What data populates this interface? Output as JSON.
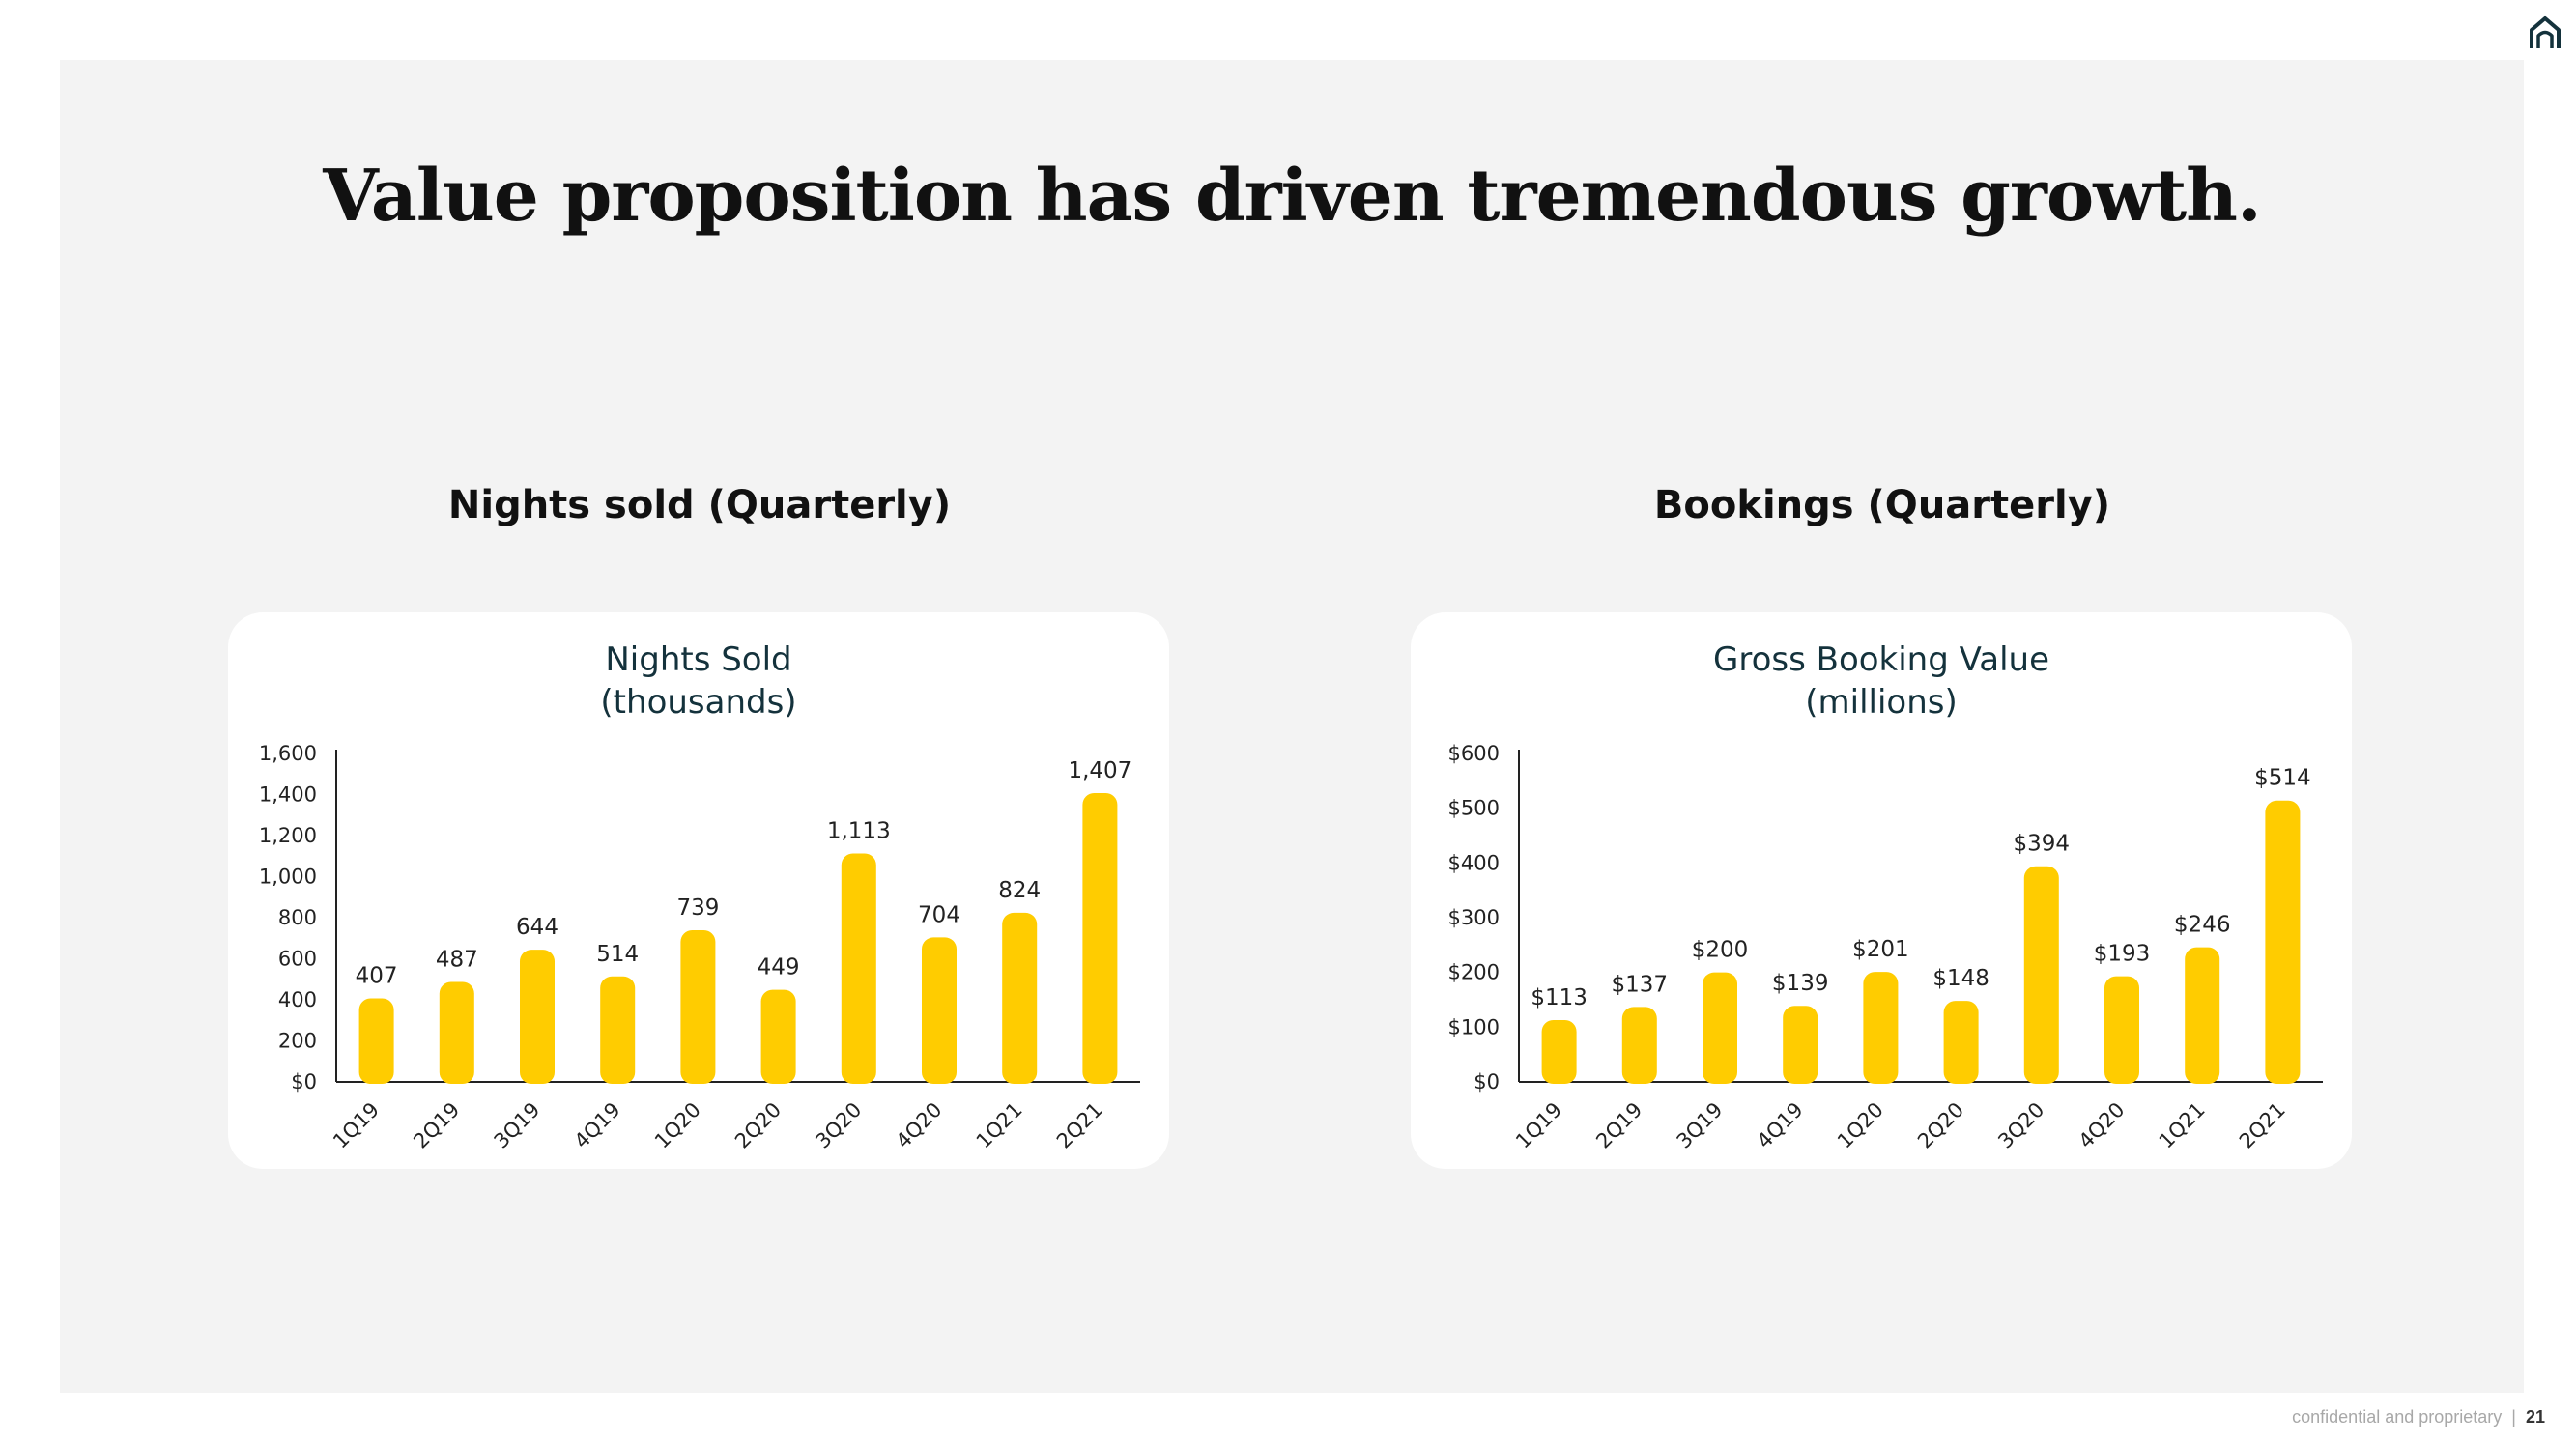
{
  "slide": {
    "title": "Value proposition has driven tremendous growth.",
    "headings": [
      "Nights sold (Quarterly)",
      "Bookings (Quarterly)"
    ],
    "footer": {
      "text": "confidential and proprietary",
      "separator": "|",
      "page": "21"
    },
    "icons": [
      "home-icon"
    ],
    "colors": {
      "bar": "#FFCC00",
      "chart_title": "#14323C",
      "background": "#F3F3F3"
    }
  },
  "chart_data": [
    {
      "type": "bar",
      "title": "Nights Sold",
      "subtitle": "(thousands)",
      "categories": [
        "1Q19",
        "2Q19",
        "3Q19",
        "4Q19",
        "1Q20",
        "2Q20",
        "3Q20",
        "4Q20",
        "1Q21",
        "2Q21"
      ],
      "values": [
        407,
        487,
        644,
        514,
        739,
        449,
        1113,
        704,
        824,
        1407
      ],
      "value_labels": [
        "407",
        "487",
        "644",
        "514",
        "739",
        "449",
        "1,113",
        "704",
        "824",
        "1,407"
      ],
      "y_ticks": [
        0,
        200,
        400,
        600,
        800,
        1000,
        1200,
        1400,
        1600
      ],
      "y_tick_labels": [
        "$0",
        "200",
        "400",
        "600",
        "800",
        "1,000",
        "1,200",
        "1,400",
        "1,600"
      ],
      "ylim": [
        0,
        1600
      ],
      "grid": false
    },
    {
      "type": "bar",
      "title": "Gross Booking Value",
      "subtitle": "(millions)",
      "categories": [
        "1Q19",
        "2Q19",
        "3Q19",
        "4Q19",
        "1Q20",
        "2Q20",
        "3Q20",
        "4Q20",
        "1Q21",
        "2Q21"
      ],
      "values": [
        113,
        137,
        200,
        139,
        201,
        148,
        394,
        193,
        246,
        514
      ],
      "value_labels": [
        "$113",
        "$137",
        "$200",
        "$139",
        "$201",
        "$148",
        "$394",
        "$193",
        "$246",
        "$514"
      ],
      "y_ticks": [
        0,
        100,
        200,
        300,
        400,
        500,
        600
      ],
      "y_tick_labels": [
        "$0",
        "$100",
        "$200",
        "$300",
        "$400",
        "$500",
        "$600"
      ],
      "ylim": [
        0,
        600
      ],
      "grid": false
    }
  ]
}
